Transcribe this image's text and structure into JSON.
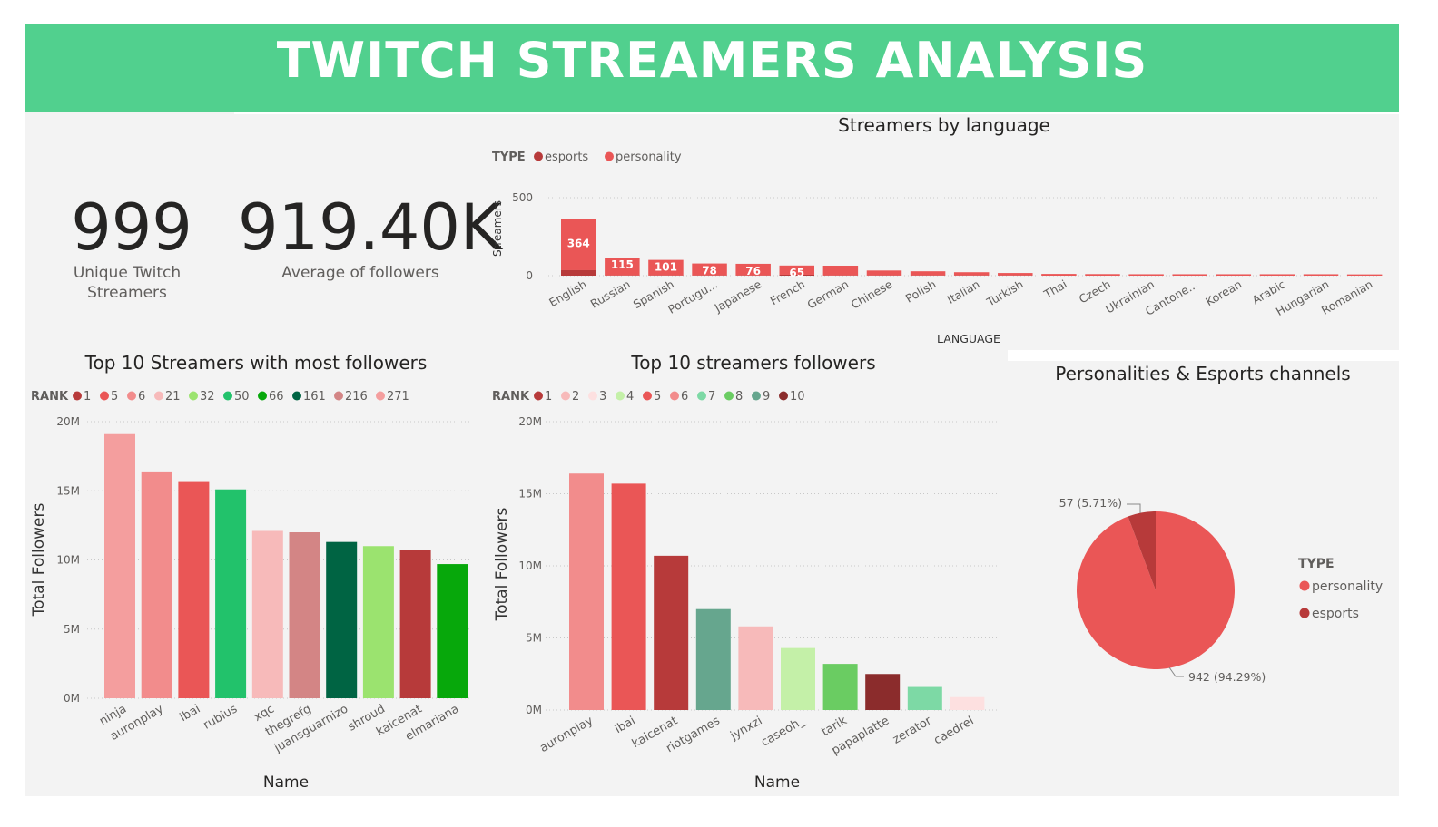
{
  "title": "TWITCH STREAMERS ANALYSIS",
  "kpis": [
    {
      "value": "999",
      "label_lines": [
        "Unique Twitch",
        "Streamers"
      ]
    },
    {
      "value": "919.40K",
      "label_lines": [
        "Average of followers"
      ]
    }
  ],
  "colors": {
    "banner": "#51d08e",
    "personality": "#ea5656",
    "esports": "#b73a3a"
  },
  "chart_data": [
    {
      "type": "bar",
      "title": "Streamers by language",
      "legend_title": "TYPE",
      "legend_placement": "top-left",
      "legend": [
        {
          "name": "esports",
          "color": "#b73a3a"
        },
        {
          "name": "personality",
          "color": "#ea5656"
        }
      ],
      "xlabel": "LANGUAGE",
      "ylabel": "Streamers",
      "yticks": [
        0,
        500
      ],
      "ylim": [
        0,
        500
      ],
      "grid": true,
      "categories": [
        "English",
        "Russian",
        "Spanish",
        "Portugu...",
        "Japanese",
        "French",
        "German",
        "Chinese",
        "Polish",
        "Italian",
        "Turkish",
        "Thai",
        "Czech",
        "Ukrainian",
        "Cantone...",
        "Korean",
        "Arabic",
        "Hungarian",
        "Romanian"
      ],
      "series": [
        {
          "name": "esports",
          "values": [
            35,
            1,
            1,
            1,
            1,
            6,
            1,
            1,
            1,
            1,
            1,
            0,
            0,
            0,
            0,
            0,
            0,
            0,
            0
          ]
        },
        {
          "name": "personality",
          "values": [
            329,
            114,
            100,
            77,
            75,
            59,
            63,
            32,
            27,
            21,
            16,
            11,
            10,
            9,
            9,
            9,
            9,
            9,
            8
          ]
        }
      ],
      "data_labels": [
        "364",
        "115",
        "101",
        "78",
        "76",
        "65",
        "",
        "",
        "",
        "",
        "",
        "",
        "",
        "",
        "",
        "",
        "",
        "",
        ""
      ]
    },
    {
      "type": "bar",
      "title": "Top 10 Streamers with most followers",
      "legend_title": "RANK",
      "legend_placement": "top-left",
      "legend": [
        {
          "name": "1",
          "color": "#b73a3a"
        },
        {
          "name": "5",
          "color": "#ea5656"
        },
        {
          "name": "6",
          "color": "#f28c8c"
        },
        {
          "name": "21",
          "color": "#f7baba"
        },
        {
          "name": "32",
          "color": "#9be36f"
        },
        {
          "name": "50",
          "color": "#22c26b"
        },
        {
          "name": "66",
          "color": "#07a80b"
        },
        {
          "name": "161",
          "color": "#006443"
        },
        {
          "name": "216",
          "color": "#d38585"
        },
        {
          "name": "271",
          "color": "#f49e9e"
        }
      ],
      "xlabel": "Name",
      "ylabel": "Total Followers",
      "yticks": [
        "0M",
        "5M",
        "10M",
        "15M",
        "20M"
      ],
      "ylim": [
        0,
        20
      ],
      "grid": true,
      "categories": [
        "ninja",
        "auronplay",
        "ibai",
        "rubius",
        "xqc",
        "thegrefg",
        "juansguarnizo",
        "shroud",
        "kaicenat",
        "elmariana"
      ],
      "values": [
        19.1,
        16.4,
        15.7,
        15.1,
        12.1,
        12.0,
        11.3,
        11.0,
        10.7,
        9.7
      ],
      "bar_colors": [
        "#f49e9e",
        "#f28c8c",
        "#ea5656",
        "#22c26b",
        "#f7baba",
        "#d38585",
        "#006443",
        "#9be36f",
        "#b73a3a",
        "#07a80b"
      ]
    },
    {
      "type": "bar",
      "title": "Top 10 streamers followers",
      "legend_title": "RANK",
      "legend_placement": "top-left",
      "legend": [
        {
          "name": "1",
          "color": "#b73a3a"
        },
        {
          "name": "2",
          "color": "#f7baba"
        },
        {
          "name": "3",
          "color": "#fde0e0"
        },
        {
          "name": "4",
          "color": "#c4f0a8"
        },
        {
          "name": "5",
          "color": "#ea5656"
        },
        {
          "name": "6",
          "color": "#f28c8c"
        },
        {
          "name": "7",
          "color": "#7dd9a5"
        },
        {
          "name": "8",
          "color": "#6acc62"
        },
        {
          "name": "9",
          "color": "#66a68e"
        },
        {
          "name": "10",
          "color": "#8b2c2c"
        }
      ],
      "xlabel": "Name",
      "ylabel": "Total Followers",
      "yticks": [
        "0M",
        "5M",
        "10M",
        "15M",
        "20M"
      ],
      "ylim": [
        0,
        20
      ],
      "grid": true,
      "categories": [
        "auronplay",
        "ibai",
        "kaicenat",
        "riotgames",
        "jynxzi",
        "caseoh_",
        "tarik",
        "papaplatte",
        "zerator",
        "caedrel"
      ],
      "values": [
        16.4,
        15.7,
        10.7,
        7.0,
        5.8,
        4.3,
        3.2,
        2.5,
        1.6,
        0.9
      ],
      "bar_colors": [
        "#f28c8c",
        "#ea5656",
        "#b73a3a",
        "#66a68e",
        "#f7baba",
        "#c4f0a8",
        "#6acc62",
        "#8b2c2c",
        "#7dd9a5",
        "#fde0e0"
      ]
    },
    {
      "type": "pie",
      "title": "Personalities & Esports channels",
      "legend_title": "TYPE",
      "legend_placement": "right",
      "slices": [
        {
          "name": "personality",
          "value": 942,
          "label": "942 (94.29%)",
          "color": "#ea5656"
        },
        {
          "name": "esports",
          "value": 57,
          "label": "57 (5.71%)",
          "color": "#b73a3a"
        }
      ]
    }
  ]
}
